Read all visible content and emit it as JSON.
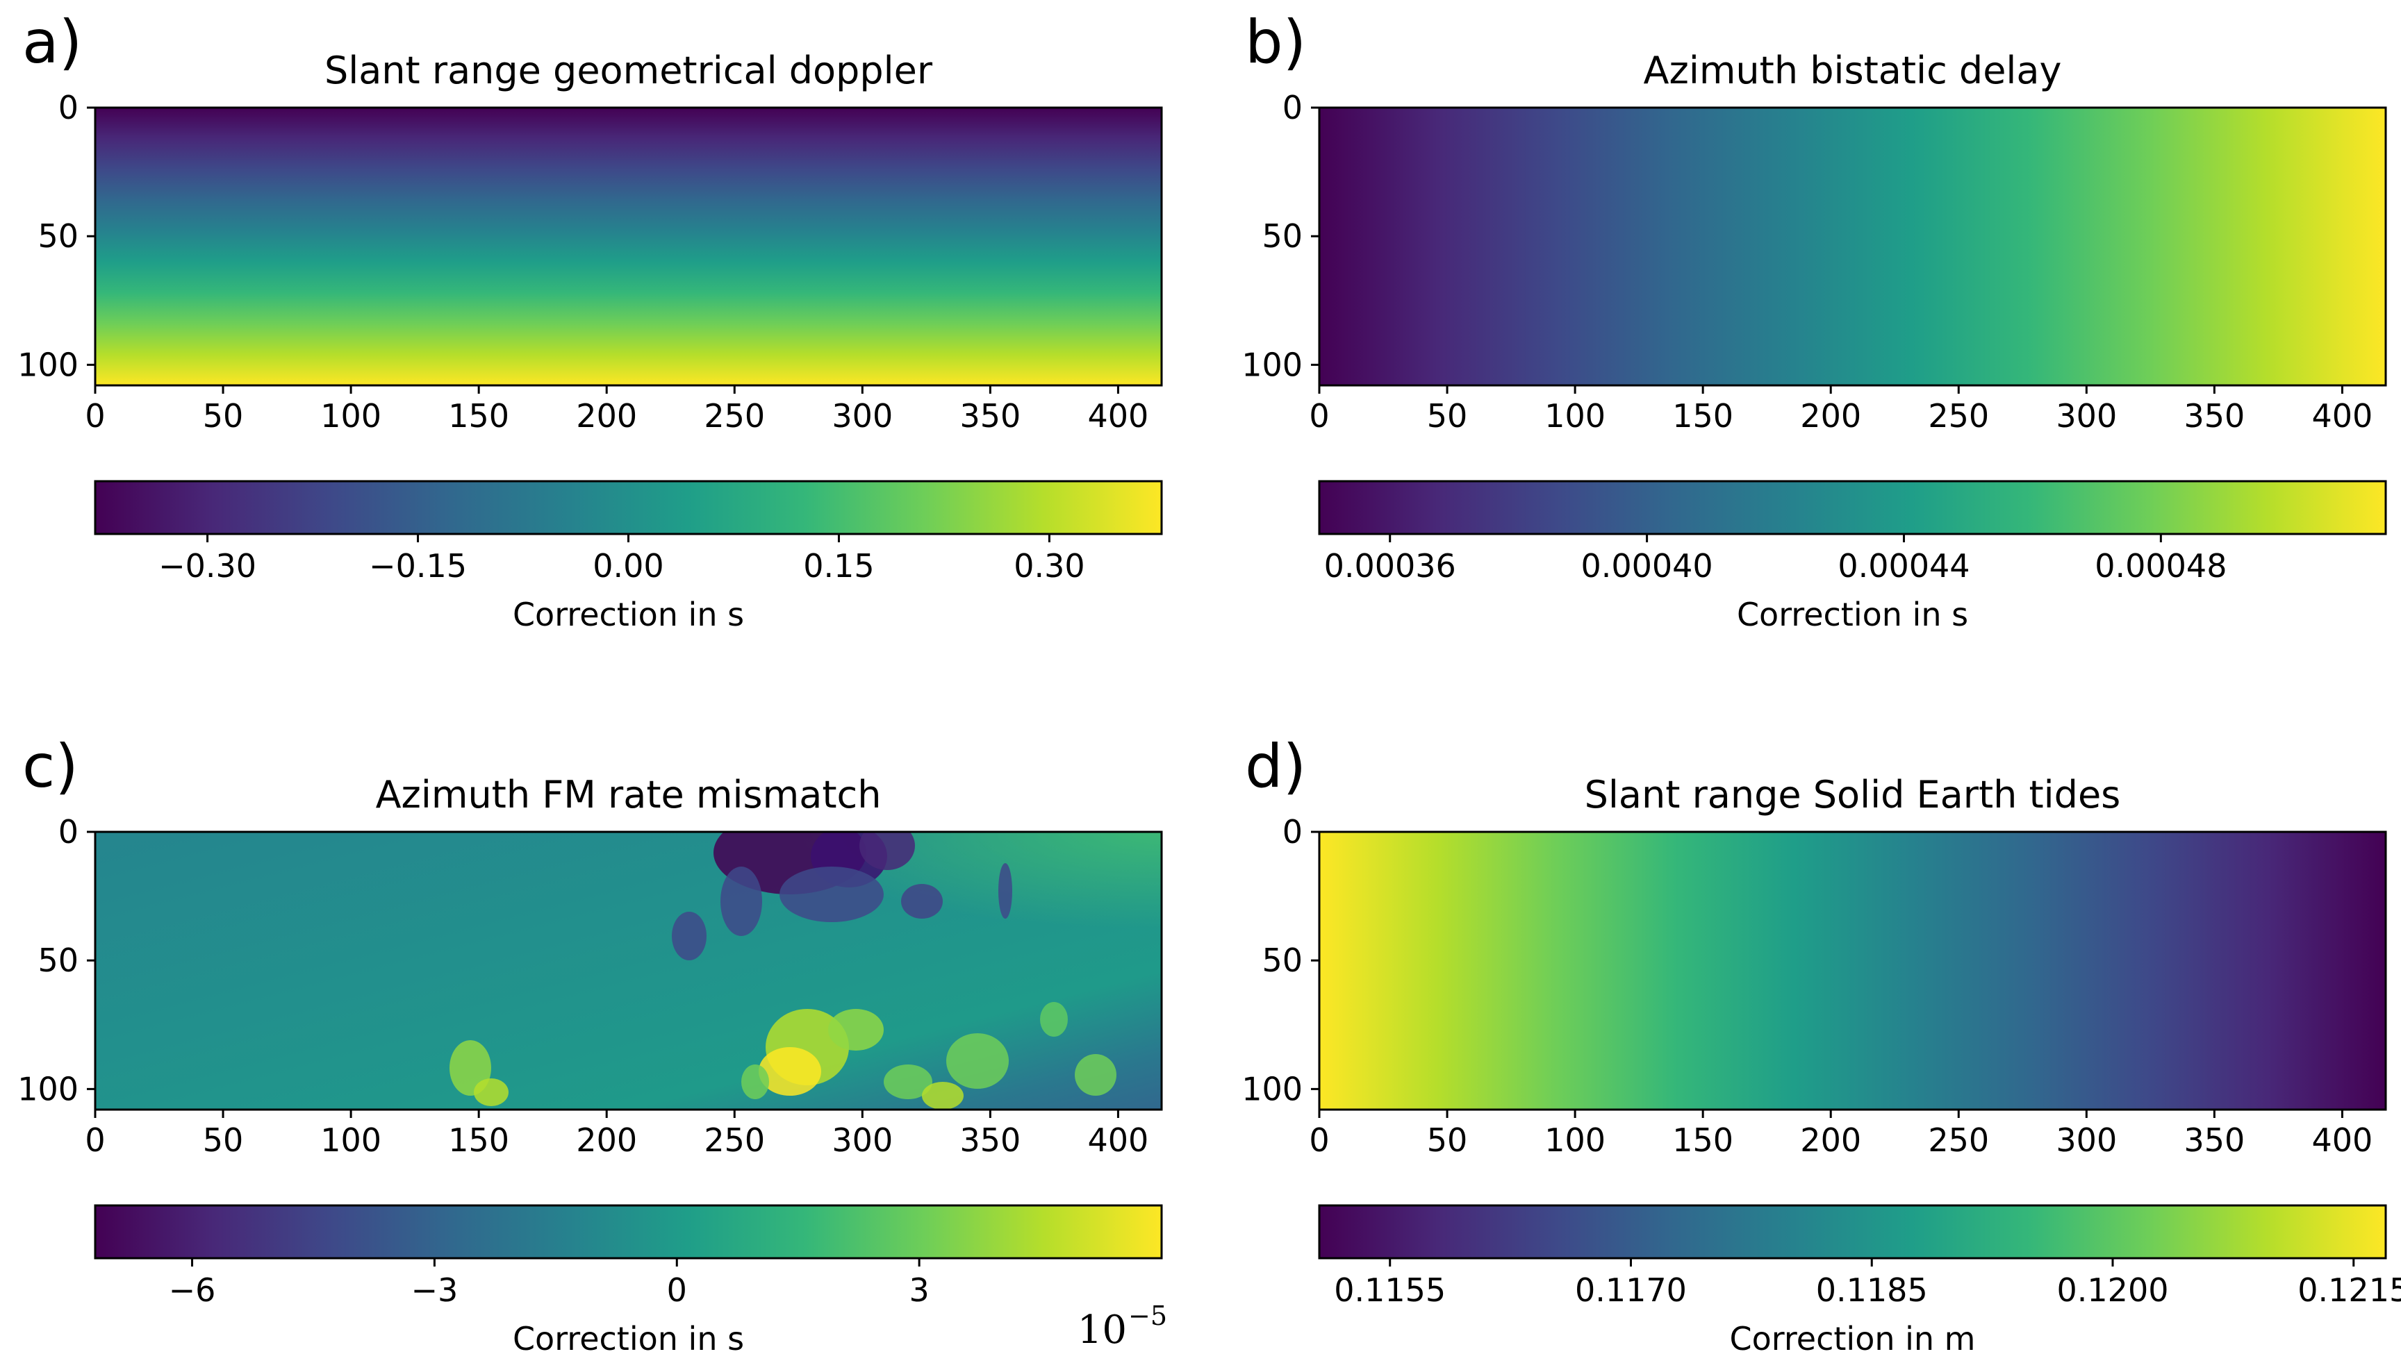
{
  "colormap": "viridis",
  "colormap_stops": [
    "#440154",
    "#482878",
    "#3e4989",
    "#31688e",
    "#26828e",
    "#1f9e89",
    "#35b779",
    "#6ece58",
    "#b5de2b",
    "#fde725"
  ],
  "chart_data": [
    {
      "panel": "a)",
      "type": "heatmap",
      "title": "Slant range geometrical doppler",
      "gradient": "vertical",
      "xlim": [
        0,
        417
      ],
      "ylim": [
        108,
        0
      ],
      "xticks": [
        "0",
        "50",
        "100",
        "150",
        "200",
        "250",
        "300",
        "350",
        "400"
      ],
      "yticks": [
        "0",
        "50",
        "100"
      ],
      "colorbar": {
        "label": "Correction in s",
        "range": [
          -0.38,
          0.38
        ],
        "ticks": [
          -0.3,
          -0.15,
          0.0,
          0.15,
          0.3
        ],
        "tick_labels": [
          "−0.30",
          "−0.15",
          "0.00",
          "0.15",
          "0.30"
        ],
        "offset_text": ""
      }
    },
    {
      "panel": "b)",
      "type": "heatmap",
      "title": "Azimuth bistatic delay",
      "gradient": "horizontal",
      "xlim": [
        0,
        417
      ],
      "ylim": [
        108,
        0
      ],
      "xticks": [
        "0",
        "50",
        "100",
        "150",
        "200",
        "250",
        "300",
        "350",
        "400"
      ],
      "yticks": [
        "0",
        "50",
        "100"
      ],
      "colorbar": {
        "label": "Correction in s",
        "range": [
          0.000349,
          0.000515
        ],
        "ticks": [
          0.00036,
          0.0004,
          0.00044,
          0.00048
        ],
        "tick_labels": [
          "0.00036",
          "0.00040",
          "0.00044",
          "0.00048"
        ],
        "offset_text": ""
      }
    },
    {
      "panel": "c)",
      "type": "heatmap",
      "title": "Azimuth FM rate mismatch",
      "gradient": "terrain",
      "xlim": [
        0,
        417
      ],
      "ylim": [
        108,
        0
      ],
      "xticks": [
        "0",
        "50",
        "100",
        "150",
        "200",
        "250",
        "300",
        "350",
        "400"
      ],
      "yticks": [
        "0",
        "50",
        "100"
      ],
      "colorbar": {
        "label": "Correction in s",
        "range": [
          -7.2,
          6.0
        ],
        "ticks": [
          -6,
          -3,
          0,
          3
        ],
        "tick_labels": [
          "−6",
          "−3",
          "0",
          "3"
        ],
        "offset_text": "10",
        "offset_exponent": "−5"
      }
    },
    {
      "panel": "d)",
      "type": "heatmap",
      "title": "Slant range Solid Earth tides",
      "gradient": "horizontal-reversed",
      "xlim": [
        0,
        417
      ],
      "ylim": [
        108,
        0
      ],
      "xticks": [
        "0",
        "50",
        "100",
        "150",
        "200",
        "250",
        "300",
        "350",
        "400"
      ],
      "yticks": [
        "0",
        "50",
        "100"
      ],
      "colorbar": {
        "label": "Correction in m",
        "range": [
          0.11506,
          0.1217
        ],
        "ticks": [
          0.1155,
          0.117,
          0.1185,
          0.12,
          0.1215
        ],
        "tick_labels": [
          "0.1155",
          "0.1170",
          "0.1185",
          "0.1200",
          "0.1215"
        ],
        "offset_text": ""
      }
    }
  ]
}
